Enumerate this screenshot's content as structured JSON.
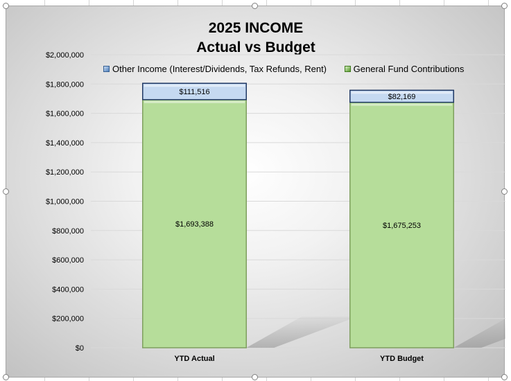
{
  "chart_data": {
    "type": "bar",
    "stacked": true,
    "title": "2025 INCOME",
    "subtitle": "Actual vs Budget",
    "categories": [
      "YTD Actual",
      "YTD Budget"
    ],
    "series": [
      {
        "name": "General Fund Contributions",
        "values": [
          1693388,
          1675253
        ],
        "labels": [
          "$1,693,388",
          "$1,675,253"
        ],
        "color": "#b6dd9a"
      },
      {
        "name": "Other Income (Interest/Dividends, Tax Refunds, Rent)",
        "values": [
          111516,
          82169
        ],
        "labels": [
          "$111,516",
          "$82,169"
        ],
        "color": "#c5d9f1"
      }
    ],
    "ylim": [
      0,
      2000000
    ],
    "yticks": [
      0,
      200000,
      400000,
      600000,
      800000,
      1000000,
      1200000,
      1400000,
      1600000,
      1800000,
      2000000
    ],
    "ytick_labels": [
      "$0",
      "$200,000",
      "$400,000",
      "$600,000",
      "$800,000",
      "$1,000,000",
      "$1,200,000",
      "$1,400,000",
      "$1,600,000",
      "$1,800,000",
      "$2,000,000"
    ],
    "grid": true,
    "legend_position": "top"
  }
}
